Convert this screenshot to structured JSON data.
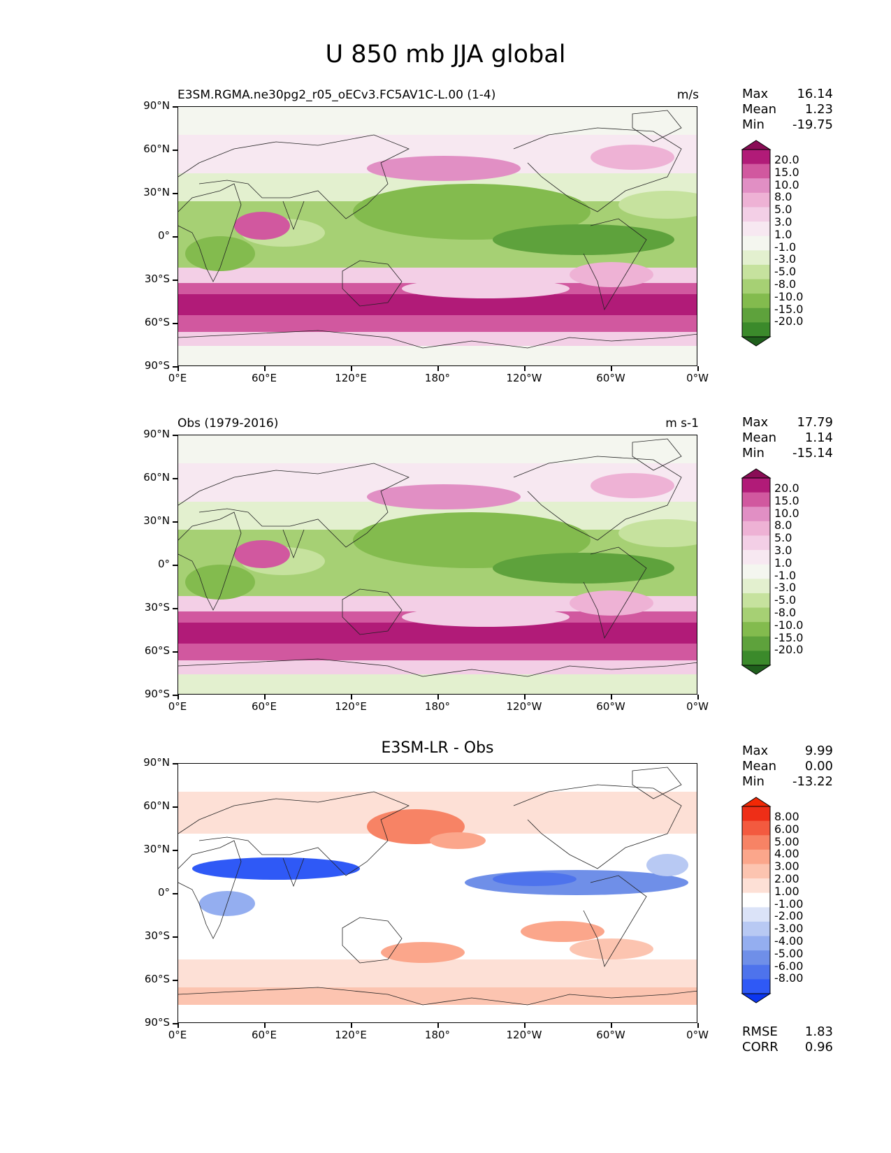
{
  "figure": {
    "title": "U 850 mb JJA global"
  },
  "axes": {
    "lat_ticks": [
      "90°N",
      "60°N",
      "30°N",
      "0°",
      "30°S",
      "60°S",
      "90°S"
    ],
    "lon_ticks": [
      "0°E",
      "60°E",
      "120°E",
      "180°",
      "120°W",
      "60°W",
      "0°W"
    ]
  },
  "colors": {
    "prgn": [
      "#1f5f1c",
      "#3b8a2b",
      "#5ea23c",
      "#83bb4e",
      "#a6d074",
      "#c6e29e",
      "#e3f0cf",
      "#f4f6ef",
      "#f7e8f1",
      "#f3cfe6",
      "#eeb2d5",
      "#e18fc4",
      "#d1589f",
      "#b11b78",
      "#8a0d56"
    ],
    "diff": [
      "#0b36f0",
      "#2f59f6",
      "#4e73ec",
      "#6f8fe8",
      "#94aef0",
      "#b8c9f3",
      "#dbe3f8",
      "#ffffff",
      "#fde0d6",
      "#fcc4b0",
      "#fba68b",
      "#f78365",
      "#f35a3f",
      "#ee2e17",
      "#f22805"
    ]
  },
  "panels": [
    {
      "title_left": "E3SM.RGMA.ne30pg2_r05_oECv3.FC5AV1C-L.00 (1-4)",
      "title_right": "m/s",
      "stats": {
        "max_label": "Max",
        "max": "16.14",
        "mean_label": "Mean",
        "mean": "1.23",
        "min_label": "Min",
        "min": "-19.75"
      },
      "colorbar_labels": [
        "20.0",
        "15.0",
        "10.0",
        "8.0",
        "5.0",
        "3.0",
        "1.0",
        "-1.0",
        "-3.0",
        "-5.0",
        "-8.0",
        "-10.0",
        "-15.0",
        "-20.0"
      ]
    },
    {
      "title_left": "Obs (1979-2016)",
      "title_right": "m s-1",
      "stats": {
        "max_label": "Max",
        "max": "17.79",
        "mean_label": "Mean",
        "mean": "1.14",
        "min_label": "Min",
        "min": "-15.14"
      },
      "colorbar_labels": [
        "20.0",
        "15.0",
        "10.0",
        "8.0",
        "5.0",
        "3.0",
        "1.0",
        "-1.0",
        "-3.0",
        "-5.0",
        "-8.0",
        "-10.0",
        "-15.0",
        "-20.0"
      ]
    },
    {
      "title_center": "E3SM-LR - Obs",
      "stats": {
        "max_label": "Max",
        "max": "9.99",
        "mean_label": "Mean",
        "mean": "0.00",
        "min_label": "Min",
        "min": "-13.22"
      },
      "colorbar_labels": [
        "8.00",
        "6.00",
        "5.00",
        "4.00",
        "3.00",
        "2.00",
        "1.00",
        "-1.00",
        "-2.00",
        "-3.00",
        "-4.00",
        "-5.00",
        "-6.00",
        "-8.00"
      ],
      "metrics": {
        "rmse_label": "RMSE",
        "rmse": "1.83",
        "corr_label": "CORR",
        "corr": "0.96"
      }
    }
  ]
}
